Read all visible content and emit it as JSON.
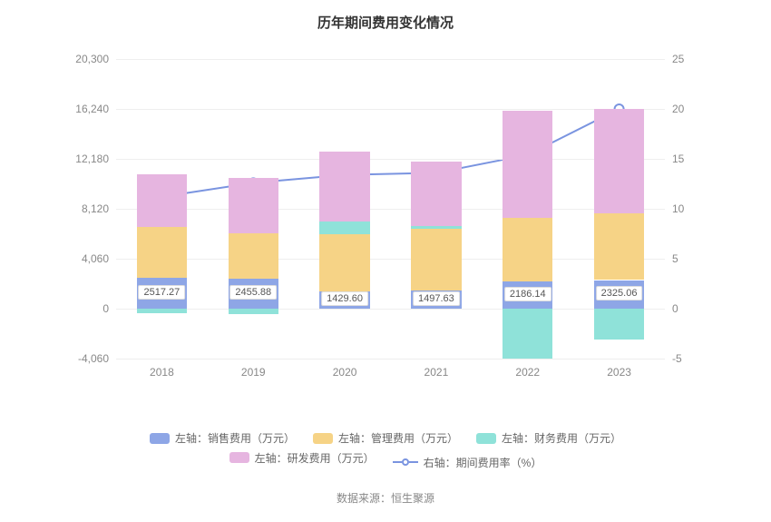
{
  "chart": {
    "type": "stacked-bar + line",
    "title": "历年期间费用变化情况",
    "title_fontsize": 15,
    "title_fontweight": "bold",
    "background_color": "#ffffff",
    "grid_color": "#eeeeee",
    "axis_text_color": "#888888",
    "bar_width_ratio": 0.55,
    "categories": [
      "2018",
      "2019",
      "2020",
      "2021",
      "2022",
      "2023"
    ],
    "left_axis": {
      "min": -4060,
      "max": 20300,
      "ticks": [
        -4060,
        0,
        4060,
        8120,
        12180,
        16240,
        20300
      ],
      "tick_labels": [
        "-4,060",
        "0",
        "4,060",
        "8,120",
        "12,180",
        "16,240",
        "20,300"
      ]
    },
    "right_axis": {
      "min": -5,
      "max": 25,
      "ticks": [
        -5,
        0,
        5,
        10,
        15,
        20,
        25
      ],
      "tick_labels": [
        "-5",
        "0",
        "5",
        "10",
        "15",
        "20",
        "25"
      ]
    },
    "series": {
      "sales": {
        "label": "左轴：销售费用（万元）",
        "color": "#8ea6e6",
        "values": [
          2517.27,
          2455.88,
          1429.6,
          1497.63,
          2186.14,
          2325.06
        ]
      },
      "admin": {
        "label": "左轴：管理费用（万元）",
        "color": "#f6d386",
        "values": [
          4100,
          3700,
          4600,
          5000,
          5200,
          5400
        ]
      },
      "finance": {
        "label": "左轴：财务费用（万元）",
        "color": "#8fe2d9",
        "values": [
          -350,
          -450,
          1050,
          250,
          -4060,
          -2500
        ]
      },
      "rnd": {
        "label": "左轴：研发费用（万元）",
        "color": "#e6b5e0",
        "values": [
          4300,
          4500,
          5700,
          5200,
          8700,
          8500
        ]
      },
      "rate": {
        "label": "右轴：期间费用率（%）",
        "color": "#7a94e0",
        "values": [
          11.2,
          12.6,
          13.4,
          13.6,
          15.4,
          20.0
        ],
        "marker": "circle",
        "line_width": 2,
        "marker_size": 5
      }
    },
    "bar_value_labels": [
      "2517.27",
      "2455.88",
      "1429.60",
      "1497.63",
      "2186.14",
      "2325.06"
    ],
    "legend": {
      "rows": [
        [
          {
            "key": "sales",
            "type": "swatch"
          },
          {
            "key": "admin",
            "type": "swatch"
          },
          {
            "key": "finance",
            "type": "swatch"
          }
        ],
        [
          {
            "key": "rnd",
            "type": "swatch"
          },
          {
            "key": "rate",
            "type": "line"
          }
        ]
      ],
      "text_color": "#666666",
      "fontsize": 12
    },
    "source_label": "数据来源：恒生聚源"
  }
}
